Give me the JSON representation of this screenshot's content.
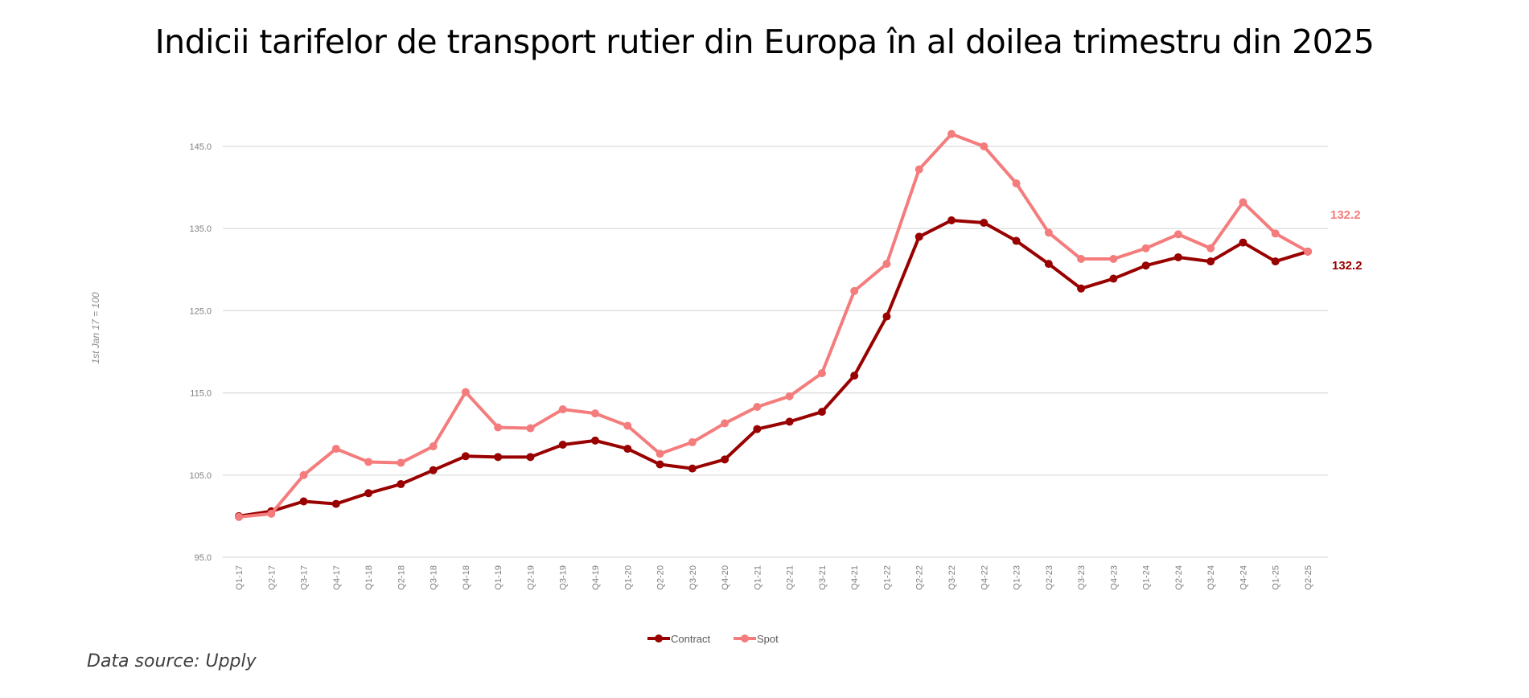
{
  "title": "Indicii tarifelor de transport rutier din Europa în al doilea trimestru din 2025",
  "source": "Data source: Upply",
  "colors": {
    "contract": "#990000",
    "spot": "#F47C7C",
    "grid": "#d9d9d9"
  },
  "chart_data": {
    "type": "line",
    "title": "Indicii tarifelor de transport rutier din Europa în al doilea trimestru din 2025",
    "xlabel": "",
    "ylabel": "1st Jan 17 = 100",
    "ylim": [
      95,
      145
    ],
    "yticks": [
      "95.0",
      "105.0",
      "115.0",
      "125.0",
      "135.0",
      "145.0"
    ],
    "grid": true,
    "legend_position": "bottom",
    "categories": [
      "Q1-17",
      "Q2-17",
      "Q3-17",
      "Q4-17",
      "Q1-18",
      "Q2-18",
      "Q3-18",
      "Q4-18",
      "Q1-19",
      "Q2-19",
      "Q3-19",
      "Q4-19",
      "Q1-20",
      "Q2-20",
      "Q3-20",
      "Q4-20",
      "Q1-21",
      "Q2-21",
      "Q3-21",
      "Q4-21",
      "Q1-22",
      "Q2-22",
      "Q3-22",
      "Q4-22",
      "Q1-23",
      "Q2-23",
      "Q3-23",
      "Q4-23",
      "Q1-24",
      "Q2-24",
      "Q3-24",
      "Q4-24",
      "Q1-25",
      "Q2-25"
    ],
    "series": [
      {
        "name": "Contract",
        "color": "#990000",
        "end_label": "132.2",
        "values": [
          100.0,
          100.6,
          101.8,
          101.5,
          102.8,
          103.9,
          105.6,
          107.3,
          107.2,
          107.2,
          108.7,
          109.2,
          108.2,
          106.3,
          105.8,
          106.9,
          110.6,
          111.5,
          112.7,
          117.1,
          124.3,
          134.0,
          136.0,
          135.7,
          133.5,
          130.7,
          127.7,
          128.9,
          130.5,
          131.5,
          131.0,
          133.3,
          131.0,
          132.2
        ]
      },
      {
        "name": "Spot",
        "color": "#F47C7C",
        "end_label": "132.2",
        "values": [
          99.9,
          100.3,
          105.0,
          108.2,
          106.6,
          106.5,
          108.5,
          115.1,
          110.8,
          110.7,
          113.0,
          112.5,
          111.0,
          107.6,
          109.0,
          111.3,
          113.3,
          114.6,
          117.4,
          127.4,
          130.7,
          142.2,
          146.5,
          145.0,
          140.5,
          134.5,
          131.3,
          131.3,
          132.6,
          134.3,
          132.6,
          138.2,
          134.4,
          132.2
        ]
      }
    ]
  }
}
